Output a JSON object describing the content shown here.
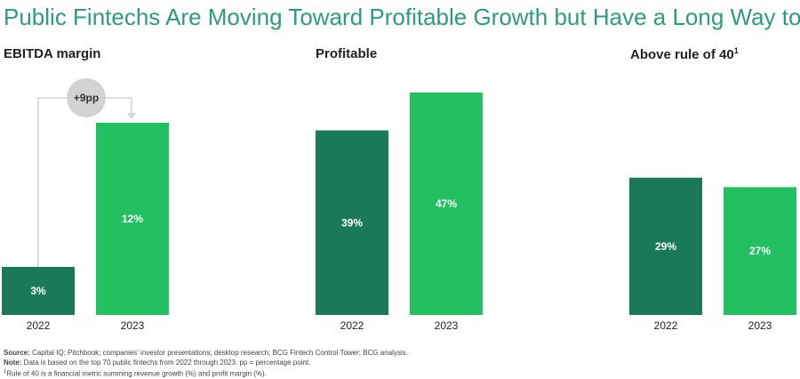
{
  "title": "Public Fintechs Are Moving Toward Profitable Growth but Have a Long Way to Go",
  "colors": {
    "bar_2022": "#1a7a57",
    "bar_2023": "#23c061",
    "title": "#2e9b7b",
    "annotation": "#d3d3d3"
  },
  "chart_data": [
    {
      "type": "bar",
      "title": "EBITDA margin",
      "categories": [
        "2022",
        "2023"
      ],
      "values": [
        3,
        12
      ],
      "value_labels": [
        "3%",
        "12%"
      ],
      "annotation": "+9pp"
    },
    {
      "type": "bar",
      "title": "Profitable",
      "categories": [
        "2022",
        "2023"
      ],
      "values": [
        39,
        47
      ],
      "value_labels": [
        "39%",
        "47%"
      ]
    },
    {
      "type": "bar",
      "title": "Above rule of 40",
      "title_sup": "1",
      "categories": [
        "2022",
        "2023"
      ],
      "values": [
        29,
        27
      ],
      "value_labels": [
        "29%",
        "27%"
      ]
    }
  ],
  "notes": {
    "source_label": "Source:",
    "source_text": " Capital IQ; Pitchbook; companies' investor presentations; desktop research; BCG Fintech Control Tower; BCG analysis.",
    "note_label": "Note:",
    "note_text": " Data is based on the top 70 public fintechs from 2022 through 2023. pp = percentage point.",
    "footnote_sup": "1",
    "footnote_text": "Rule of 40 is a financial metric summing revenue growth (%) and profit margin (%)."
  }
}
